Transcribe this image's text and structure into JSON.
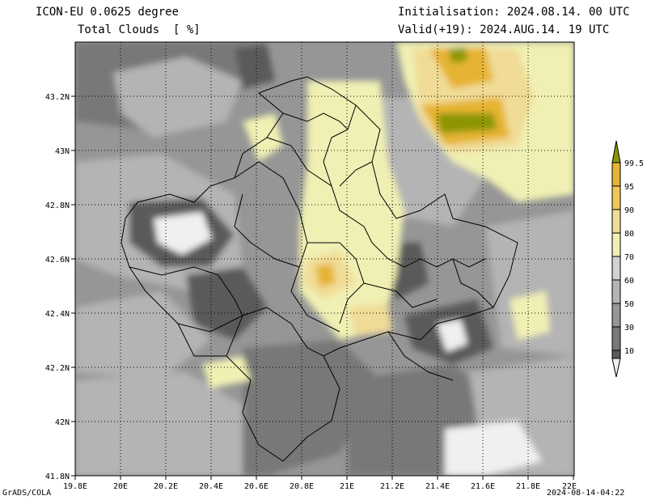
{
  "header": {
    "model": "ICON-EU 0.0625 degree",
    "variable": "Total Clouds  [ %]",
    "init": "Initialisation: 2024.08.14. 00 UTC",
    "valid": "Valid(+19): 2024.AUG.14. 19 UTC"
  },
  "footer": {
    "left": "GrADS/COLA",
    "right": "2024-08-14-04:22"
  },
  "map": {
    "lon_labels": [
      "19.8E",
      "20E",
      "20.2E",
      "20.4E",
      "20.6E",
      "20.8E",
      "21E",
      "21.2E",
      "21.4E",
      "21.6E",
      "21.8E",
      "22E"
    ],
    "lat_labels": [
      "43.2N",
      "43N",
      "42.8N",
      "42.6N",
      "42.4N",
      "42.2N",
      "42N",
      "41.8N"
    ],
    "lon_range": [
      19.8,
      22.0
    ],
    "lat_range": [
      41.8,
      43.4
    ],
    "grid": true
  },
  "colorbar": {
    "labels": [
      "99.5",
      "95",
      "90",
      "80",
      "70",
      "60",
      "50",
      "30",
      "10"
    ],
    "colors": [
      "#8c9600",
      "#e6b432",
      "#f0c85a",
      "#f0dc96",
      "#f0f0b4",
      "#d2d2d2",
      "#b4b4b4",
      "#969696",
      "#787878",
      "#5a5a5a",
      "#f0f0f0"
    ]
  }
}
